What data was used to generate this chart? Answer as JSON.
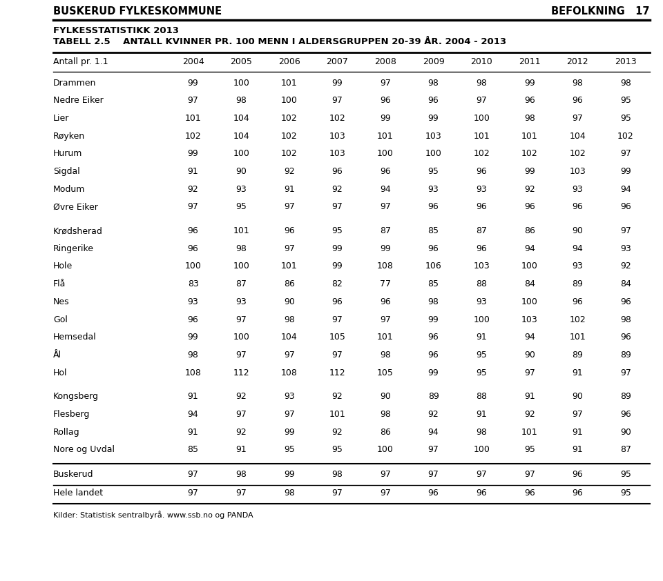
{
  "header_left_top": "BUSKERUD FYLKESKOMMUNE",
  "header_left_bottom": "FYLKESSTATISTIKK 2013",
  "header_right": "BEFOLKNING   17",
  "table_title": "TABELL 2.5    ANTALL KVINNER PR. 100 MENN I ALDERSGRUPPEN 20-39 ÅR. 2004 - 2013",
  "col_header_left": "Antall pr. 1.1",
  "col_years": [
    "2004",
    "2005",
    "2006",
    "2007",
    "2008",
    "2009",
    "2010",
    "2011",
    "2012",
    "2013"
  ],
  "rows": [
    {
      "name": "Drammen",
      "values": [
        99,
        100,
        101,
        99,
        97,
        98,
        98,
        99,
        98,
        98
      ]
    },
    {
      "name": "Nedre Eiker",
      "values": [
        97,
        98,
        100,
        97,
        96,
        96,
        97,
        96,
        96,
        95
      ]
    },
    {
      "name": "Lier",
      "values": [
        101,
        104,
        102,
        102,
        99,
        99,
        100,
        98,
        97,
        95
      ]
    },
    {
      "name": "Røyken",
      "values": [
        102,
        104,
        102,
        103,
        101,
        103,
        101,
        101,
        104,
        102
      ]
    },
    {
      "name": "Hurum",
      "values": [
        99,
        100,
        102,
        103,
        100,
        100,
        102,
        102,
        102,
        97
      ]
    },
    {
      "name": "Sigdal",
      "values": [
        91,
        90,
        92,
        96,
        96,
        95,
        96,
        99,
        103,
        99
      ]
    },
    {
      "name": "Modum",
      "values": [
        92,
        93,
        91,
        92,
        94,
        93,
        93,
        92,
        93,
        94
      ]
    },
    {
      "name": "Øvre Eiker",
      "values": [
        97,
        95,
        97,
        97,
        97,
        96,
        96,
        96,
        96,
        96
      ]
    },
    {
      "name": "Krødsherad",
      "values": [
        96,
        101,
        96,
        95,
        87,
        85,
        87,
        86,
        90,
        97
      ]
    },
    {
      "name": "Ringerike",
      "values": [
        96,
        98,
        97,
        99,
        99,
        96,
        96,
        94,
        94,
        93
      ]
    },
    {
      "name": "Hole",
      "values": [
        100,
        100,
        101,
        99,
        108,
        106,
        103,
        100,
        93,
        92
      ]
    },
    {
      "name": "Flå",
      "values": [
        83,
        87,
        86,
        82,
        77,
        85,
        88,
        84,
        89,
        84
      ]
    },
    {
      "name": "Nes",
      "values": [
        93,
        93,
        90,
        96,
        96,
        98,
        93,
        100,
        96,
        96
      ]
    },
    {
      "name": "Gol",
      "values": [
        96,
        97,
        98,
        97,
        97,
        99,
        100,
        103,
        102,
        98
      ]
    },
    {
      "name": "Hemsedal",
      "values": [
        99,
        100,
        104,
        105,
        101,
        96,
        91,
        94,
        101,
        96
      ]
    },
    {
      "name": "Ål",
      "values": [
        98,
        97,
        97,
        97,
        98,
        96,
        95,
        90,
        89,
        89
      ]
    },
    {
      "name": "Hol",
      "values": [
        108,
        112,
        108,
        112,
        105,
        99,
        95,
        97,
        91,
        97
      ]
    },
    {
      "name": "Kongsberg",
      "values": [
        91,
        92,
        93,
        92,
        90,
        89,
        88,
        91,
        90,
        89
      ]
    },
    {
      "name": "Flesberg",
      "values": [
        94,
        97,
        97,
        101,
        98,
        92,
        91,
        92,
        97,
        96
      ]
    },
    {
      "name": "Rollag",
      "values": [
        91,
        92,
        99,
        92,
        86,
        94,
        98,
        101,
        91,
        90
      ]
    },
    {
      "name": "Nore og Uvdal",
      "values": [
        85,
        91,
        95,
        95,
        100,
        97,
        100,
        95,
        91,
        87
      ]
    }
  ],
  "summary_rows": [
    {
      "name": "Buskerud",
      "values": [
        97,
        98,
        99,
        98,
        97,
        97,
        97,
        97,
        96,
        95
      ]
    },
    {
      "name": "Hele landet",
      "values": [
        97,
        97,
        98,
        97,
        97,
        96,
        96,
        96,
        96,
        95
      ]
    }
  ],
  "footnote": "Kilder: Statistisk sentralbyrå. www.ssb.no og PANDA",
  "group_breaks": [
    8,
    17
  ],
  "bg_color": "#ffffff",
  "text_color": "#000000"
}
